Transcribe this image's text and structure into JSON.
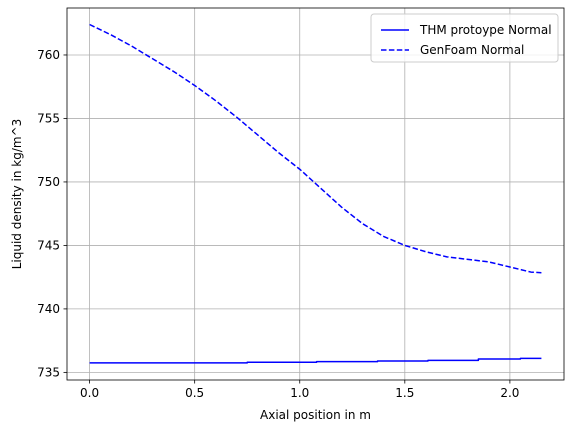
{
  "chart_data": {
    "type": "line",
    "title": "",
    "xlabel": "Axial position in m",
    "ylabel": "Liquid density in kg/m^3",
    "xlim": [
      -0.1075,
      2.2575
    ],
    "ylim": [
      734.4,
      763.7
    ],
    "grid": true,
    "legend_position": "top-right",
    "xticks": [
      0.0,
      0.5,
      1.0,
      1.5,
      2.0
    ],
    "xtick_labels": [
      "0.0",
      "0.5",
      "1.0",
      "1.5",
      "2.0"
    ],
    "yticks": [
      735,
      740,
      745,
      750,
      755,
      760
    ],
    "ytick_labels": [
      "735",
      "740",
      "745",
      "750",
      "755",
      "760"
    ],
    "colors": {
      "series": "#0000ff",
      "grid": "#b0b0b0",
      "frame": "#000000"
    },
    "series": [
      {
        "name": "THM protoype Normal",
        "style": "solid",
        "x": [
          0.0,
          0.75,
          0.75,
          1.08,
          1.08,
          1.37,
          1.37,
          1.61,
          1.61,
          1.85,
          1.85,
          2.05,
          2.05,
          2.15
        ],
        "y": [
          735.75,
          735.75,
          735.8,
          735.8,
          735.85,
          735.85,
          735.9,
          735.9,
          735.95,
          735.95,
          736.05,
          736.05,
          736.1,
          736.1
        ]
      },
      {
        "name": "GenFoam Normal",
        "style": "dashed",
        "x": [
          0.0,
          0.1,
          0.2,
          0.3,
          0.4,
          0.5,
          0.6,
          0.7,
          0.8,
          0.9,
          1.0,
          1.1,
          1.2,
          1.3,
          1.4,
          1.5,
          1.6,
          1.7,
          1.8,
          1.9,
          2.0,
          2.1,
          2.15
        ],
        "y": [
          762.4,
          761.6,
          760.7,
          759.7,
          758.7,
          757.6,
          756.4,
          755.1,
          753.7,
          752.3,
          751.0,
          749.5,
          748.0,
          746.7,
          745.7,
          745.0,
          744.5,
          744.1,
          743.9,
          743.7,
          743.3,
          742.9,
          742.85
        ]
      }
    ]
  }
}
